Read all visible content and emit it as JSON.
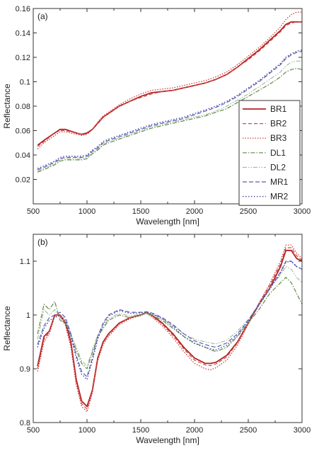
{
  "chart_data": [
    {
      "type": "line",
      "panel_label": "(a)",
      "xlabel": "Wavelength [nm]",
      "ylabel": "Reflectance",
      "xlim": [
        500,
        3000
      ],
      "ylim": [
        0.0,
        0.16
      ],
      "xticks": [
        500,
        1000,
        1500,
        2000,
        2500,
        3000
      ],
      "xtick_labels": [
        "500",
        "1000",
        "1500",
        "2000",
        "2500",
        "3000"
      ],
      "yticks": [
        0.02,
        0.04,
        0.06,
        0.08,
        0.1,
        0.12,
        0.14,
        0.16
      ],
      "ytick_labels": [
        "0.02",
        "0.04",
        "0.06",
        "0.08",
        "0.1",
        "0.12",
        "0.14",
        "0.16"
      ],
      "grid": false,
      "legend_position": "bottom-right",
      "x": [
        540,
        600,
        700,
        750,
        800,
        900,
        950,
        1000,
        1050,
        1100,
        1150,
        1200,
        1300,
        1400,
        1500,
        1600,
        1700,
        1800,
        1900,
        2000,
        2100,
        2200,
        2300,
        2400,
        2500,
        2600,
        2700,
        2800,
        2850,
        2900,
        2950,
        3000
      ],
      "series": [
        {
          "name": "BR1",
          "color": "#b22222",
          "dash": "",
          "width": 1.8,
          "values": [
            0.048,
            0.052,
            0.058,
            0.061,
            0.061,
            0.058,
            0.057,
            0.058,
            0.061,
            0.066,
            0.071,
            0.074,
            0.08,
            0.084,
            0.088,
            0.091,
            0.092,
            0.093,
            0.095,
            0.097,
            0.099,
            0.102,
            0.106,
            0.112,
            0.119,
            0.126,
            0.134,
            0.142,
            0.147,
            0.149,
            0.149,
            0.149
          ]
        },
        {
          "name": "BR2",
          "color": "#d04a4a",
          "dash": "5,3",
          "width": 1.2,
          "values": [
            0.047,
            0.051,
            0.058,
            0.06,
            0.06,
            0.058,
            0.057,
            0.057,
            0.061,
            0.066,
            0.071,
            0.074,
            0.08,
            0.084,
            0.087,
            0.09,
            0.092,
            0.093,
            0.095,
            0.097,
            0.099,
            0.102,
            0.106,
            0.112,
            0.118,
            0.125,
            0.133,
            0.141,
            0.146,
            0.148,
            0.149,
            0.149
          ]
        },
        {
          "name": "BR3",
          "color": "#c43030",
          "dash": "1.5,2",
          "width": 1.2,
          "values": [
            0.045,
            0.05,
            0.056,
            0.059,
            0.059,
            0.057,
            0.056,
            0.057,
            0.061,
            0.067,
            0.072,
            0.075,
            0.081,
            0.086,
            0.09,
            0.093,
            0.094,
            0.095,
            0.097,
            0.099,
            0.101,
            0.104,
            0.108,
            0.114,
            0.121,
            0.128,
            0.136,
            0.145,
            0.151,
            0.155,
            0.157,
            0.157
          ]
        },
        {
          "name": "DL1",
          "color": "#5e8a4a",
          "dash": "6,2,1.5,2",
          "width": 1.2,
          "values": [
            0.026,
            0.028,
            0.032,
            0.035,
            0.036,
            0.036,
            0.036,
            0.037,
            0.041,
            0.044,
            0.048,
            0.05,
            0.053,
            0.056,
            0.059,
            0.062,
            0.064,
            0.066,
            0.068,
            0.07,
            0.072,
            0.075,
            0.078,
            0.083,
            0.088,
            0.093,
            0.098,
            0.104,
            0.108,
            0.11,
            0.111,
            0.11
          ]
        },
        {
          "name": "DL2",
          "color": "#9ab08a",
          "dash": "6,2,1.5,2,1.5,2",
          "width": 1.0,
          "values": [
            0.027,
            0.029,
            0.033,
            0.036,
            0.037,
            0.037,
            0.037,
            0.038,
            0.042,
            0.045,
            0.049,
            0.051,
            0.054,
            0.057,
            0.06,
            0.063,
            0.065,
            0.067,
            0.069,
            0.071,
            0.073,
            0.076,
            0.08,
            0.085,
            0.09,
            0.096,
            0.102,
            0.108,
            0.113,
            0.116,
            0.117,
            0.117
          ]
        },
        {
          "name": "MR1",
          "color": "#5a5ab8",
          "dash": "6,3",
          "width": 1.2,
          "values": [
            0.028,
            0.03,
            0.034,
            0.037,
            0.038,
            0.038,
            0.038,
            0.039,
            0.043,
            0.046,
            0.05,
            0.052,
            0.055,
            0.058,
            0.061,
            0.064,
            0.066,
            0.068,
            0.07,
            0.073,
            0.076,
            0.079,
            0.083,
            0.088,
            0.094,
            0.1,
            0.107,
            0.114,
            0.119,
            0.122,
            0.124,
            0.125
          ]
        },
        {
          "name": "MR2",
          "color": "#44449a",
          "dash": "1.5,2.5",
          "width": 1.4,
          "values": [
            0.029,
            0.031,
            0.035,
            0.038,
            0.039,
            0.039,
            0.039,
            0.04,
            0.044,
            0.047,
            0.051,
            0.053,
            0.056,
            0.059,
            0.062,
            0.065,
            0.067,
            0.069,
            0.071,
            0.074,
            0.077,
            0.08,
            0.084,
            0.089,
            0.095,
            0.101,
            0.108,
            0.115,
            0.12,
            0.123,
            0.125,
            0.126
          ]
        }
      ]
    },
    {
      "type": "line",
      "panel_label": "(b)",
      "xlabel": "Wavelength [nm]",
      "ylabel": "Reflectance",
      "xlim": [
        500,
        3000
      ],
      "ylim": [
        0.8,
        1.15
      ],
      "xticks": [
        500,
        1000,
        1500,
        2000,
        2500,
        3000
      ],
      "xtick_labels": [
        "500",
        "1000",
        "1500",
        "2000",
        "2500",
        "3000"
      ],
      "yticks": [
        0.8,
        0.9,
        1.0,
        1.1
      ],
      "ytick_labels": [
        "0.8",
        "0.9",
        "1",
        "1.1"
      ],
      "grid": false,
      "legend_position": "none",
      "x": [
        540,
        600,
        650,
        700,
        750,
        800,
        850,
        900,
        950,
        1000,
        1050,
        1100,
        1150,
        1200,
        1300,
        1400,
        1500,
        1550,
        1600,
        1700,
        1800,
        1900,
        2000,
        2100,
        2150,
        2200,
        2300,
        2400,
        2500,
        2600,
        2700,
        2800,
        2850,
        2900,
        2950,
        3000
      ],
      "series": [
        {
          "name": "BR1",
          "color": "#b22222",
          "dash": "",
          "width": 1.8,
          "values": [
            0.905,
            0.96,
            0.97,
            1.0,
            1.0,
            0.985,
            0.95,
            0.88,
            0.84,
            0.83,
            0.86,
            0.92,
            0.95,
            0.965,
            0.985,
            0.995,
            1.0,
            1.005,
            1.0,
            0.985,
            0.965,
            0.94,
            0.92,
            0.91,
            0.91,
            0.912,
            0.925,
            0.95,
            0.985,
            1.02,
            1.05,
            1.09,
            1.12,
            1.12,
            1.105,
            1.1
          ]
        },
        {
          "name": "BR2",
          "color": "#d04a4a",
          "dash": "5,3",
          "width": 1.2,
          "values": [
            0.9,
            0.955,
            0.968,
            1.0,
            1.0,
            0.983,
            0.945,
            0.875,
            0.835,
            0.825,
            0.858,
            0.918,
            0.948,
            0.963,
            0.984,
            0.995,
            1.0,
            1.004,
            0.999,
            0.983,
            0.962,
            0.937,
            0.916,
            0.907,
            0.906,
            0.909,
            0.922,
            0.948,
            0.985,
            1.022,
            1.055,
            1.095,
            1.125,
            1.125,
            1.11,
            1.102
          ]
        },
        {
          "name": "BR3",
          "color": "#c43030",
          "dash": "1.5,2",
          "width": 1.2,
          "values": [
            0.895,
            0.95,
            0.965,
            0.998,
            0.998,
            0.98,
            0.94,
            0.87,
            0.83,
            0.82,
            0.855,
            0.915,
            0.945,
            0.96,
            0.982,
            0.993,
            0.999,
            1.003,
            0.997,
            0.98,
            0.958,
            0.932,
            0.91,
            0.9,
            0.898,
            0.902,
            0.916,
            0.944,
            0.983,
            1.022,
            1.058,
            1.1,
            1.13,
            1.13,
            1.115,
            1.105
          ]
        },
        {
          "name": "DL1",
          "color": "#5e8a4a",
          "dash": "6,2,1.5,2",
          "width": 1.2,
          "values": [
            0.965,
            1.02,
            1.01,
            1.025,
            0.99,
            0.985,
            0.96,
            0.935,
            0.91,
            0.9,
            0.93,
            0.96,
            0.975,
            0.99,
            1.0,
            0.995,
            1.0,
            1.003,
            1.0,
            0.99,
            0.975,
            0.96,
            0.948,
            0.94,
            0.935,
            0.932,
            0.94,
            0.96,
            0.985,
            1.01,
            1.04,
            1.06,
            1.07,
            1.06,
            1.04,
            1.02
          ]
        },
        {
          "name": "DL2",
          "color": "#9ab08a",
          "dash": "6,2,1.5,2,1.5,2",
          "width": 1.0,
          "values": [
            0.955,
            1.01,
            1.0,
            1.01,
            0.995,
            0.988,
            0.965,
            0.94,
            0.915,
            0.905,
            0.935,
            0.963,
            0.978,
            0.993,
            1.003,
            0.998,
            1.002,
            1.004,
            1.002,
            0.993,
            0.98,
            0.965,
            0.955,
            0.95,
            0.948,
            0.946,
            0.953,
            0.97,
            0.992,
            1.02,
            1.05,
            1.075,
            1.09,
            1.085,
            1.07,
            1.06
          ]
        },
        {
          "name": "MR1",
          "color": "#5a5ab8",
          "dash": "6,3",
          "width": 1.2,
          "values": [
            0.945,
            0.98,
            0.995,
            1.0,
            1.005,
            0.995,
            0.965,
            0.925,
            0.895,
            0.885,
            0.92,
            0.96,
            0.985,
            1.0,
            1.01,
            1.005,
            1.005,
            1.006,
            1.004,
            0.995,
            0.982,
            0.965,
            0.952,
            0.945,
            0.942,
            0.94,
            0.948,
            0.965,
            0.99,
            1.02,
            1.05,
            1.08,
            1.1,
            1.1,
            1.09,
            1.085
          ]
        },
        {
          "name": "MR2",
          "color": "#44449a",
          "dash": "1.5,2.5",
          "width": 1.4,
          "values": [
            0.94,
            0.975,
            0.99,
            0.995,
            1.0,
            0.99,
            0.96,
            0.92,
            0.89,
            0.88,
            0.915,
            0.955,
            0.982,
            0.998,
            1.008,
            1.003,
            1.004,
            1.005,
            1.003,
            0.993,
            0.978,
            0.96,
            0.947,
            0.94,
            0.937,
            0.935,
            0.944,
            0.962,
            0.988,
            1.018,
            1.048,
            1.078,
            1.098,
            1.1,
            1.09,
            1.085
          ]
        }
      ]
    }
  ]
}
